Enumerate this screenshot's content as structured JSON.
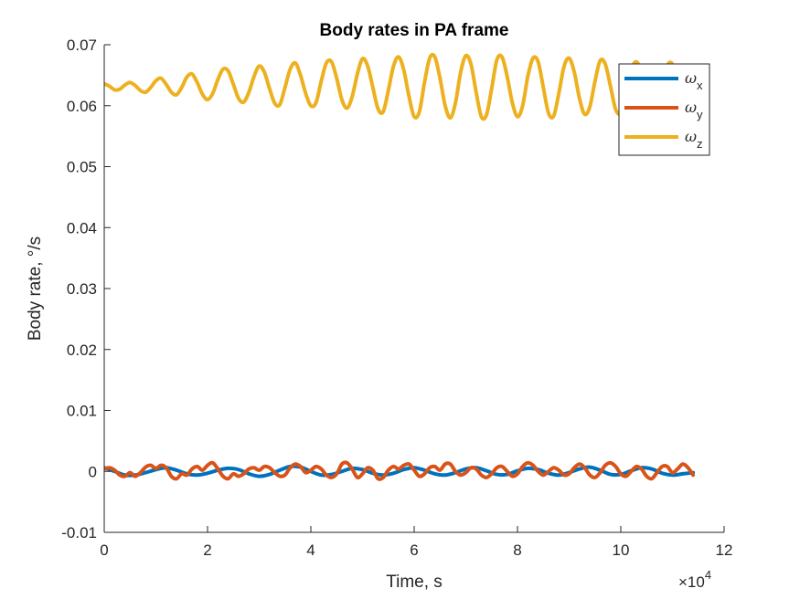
{
  "chart_data": {
    "type": "line",
    "title": "Body rates in PA frame",
    "xlabel": "Time, s",
    "ylabel": "Body rate, °/s",
    "xlim": [
      0,
      120000
    ],
    "ylim": [
      -0.01,
      0.07
    ],
    "x_ticks": [
      0,
      20000,
      40000,
      60000,
      80000,
      100000,
      120000
    ],
    "x_tick_labels": [
      "0",
      "2",
      "4",
      "6",
      "8",
      "10",
      "12"
    ],
    "x_exponent_label": "×10",
    "x_exponent_power": "4",
    "y_ticks": [
      -0.01,
      0,
      0.01,
      0.02,
      0.03,
      0.04,
      0.05,
      0.06,
      0.07
    ],
    "y_tick_labels": [
      "-0.01",
      "0",
      "0.01",
      "0.02",
      "0.03",
      "0.04",
      "0.05",
      "0.06",
      "0.07"
    ],
    "grid": false,
    "legend_position": "top-right",
    "series": [
      {
        "name": "ωx",
        "symbol": "ω",
        "subscript": "x",
        "color": "#0072BD",
        "x": [
          0,
          2000,
          4000,
          6000,
          8000,
          10000,
          12000,
          14000,
          16000,
          18000,
          20000,
          22000,
          24000,
          26000,
          28000,
          30000,
          32000,
          34000,
          36000,
          38000,
          40000,
          42000,
          44000,
          46000,
          48000,
          50000,
          52000,
          54000,
          56000,
          58000,
          60000,
          62000,
          64000,
          66000,
          68000,
          70000,
          72000,
          74000,
          76000,
          78000,
          80000,
          82000,
          84000,
          86000,
          88000,
          90000,
          92000,
          94000,
          96000,
          98000,
          100000,
          102000,
          104000,
          106000,
          108000,
          110000,
          112000,
          114000
        ],
        "y": [
          0.0006,
          0.0,
          -0.0006,
          -0.0006,
          -0.0002,
          0.0003,
          0.0006,
          0.0002,
          -0.0004,
          -0.0006,
          -0.0003,
          0.0002,
          0.0005,
          0.0003,
          -0.0004,
          -0.0008,
          -0.0005,
          0.0002,
          0.0008,
          0.0007,
          0.0,
          -0.0006,
          -0.0005,
          0.0,
          0.0005,
          0.0003,
          -0.0003,
          -0.0006,
          -0.0003,
          0.0003,
          0.0006,
          0.0002,
          -0.0004,
          -0.0006,
          -0.0002,
          0.0004,
          0.0006,
          0.0001,
          -0.0005,
          -0.0005,
          0.0001,
          0.0005,
          0.0003,
          -0.0003,
          -0.0006,
          -0.0002,
          0.0004,
          0.0007,
          0.0002,
          -0.0005,
          -0.0005,
          0.0001,
          0.0006,
          0.0004,
          -0.0003,
          -0.0006,
          -0.0004,
          -0.0002
        ]
      },
      {
        "name": "ωy",
        "symbol": "ω",
        "subscript": "y",
        "color": "#D95319",
        "x": [
          0,
          1000,
          2000,
          3000,
          4000,
          5000,
          6000,
          7000,
          8000,
          9000,
          10000,
          11000,
          12000,
          13000,
          14000,
          15000,
          16000,
          17000,
          18000,
          19000,
          20000,
          21000,
          22000,
          23000,
          24000,
          25000,
          26000,
          27000,
          28000,
          29000,
          30000,
          31000,
          32000,
          33000,
          34000,
          35000,
          36000,
          37000,
          38000,
          39000,
          40000,
          41000,
          42000,
          43000,
          44000,
          45000,
          46000,
          47000,
          48000,
          49000,
          50000,
          51000,
          52000,
          53000,
          54000,
          55000,
          56000,
          57000,
          58000,
          59000,
          60000,
          61000,
          62000,
          63000,
          64000,
          65000,
          66000,
          67000,
          68000,
          69000,
          70000,
          71000,
          72000,
          73000,
          74000,
          75000,
          76000,
          77000,
          78000,
          79000,
          80000,
          81000,
          82000,
          83000,
          84000,
          85000,
          86000,
          87000,
          88000,
          89000,
          90000,
          91000,
          92000,
          93000,
          94000,
          95000,
          96000,
          97000,
          98000,
          99000,
          100000,
          101000,
          102000,
          103000,
          104000,
          105000,
          106000,
          107000,
          108000,
          109000,
          110000,
          111000,
          112000,
          113000,
          114000
        ],
        "y": [
          0.0004,
          0.0006,
          0.0002,
          -0.0006,
          -0.0008,
          -0.0002,
          -0.0008,
          -0.0002,
          0.0007,
          0.001,
          0.0005,
          0.001,
          0.0006,
          -0.0008,
          -0.0012,
          -0.0004,
          -0.0006,
          0.0004,
          0.0008,
          0.0002,
          0.001,
          0.0014,
          0.0004,
          -0.0008,
          -0.0012,
          -0.0004,
          -0.0008,
          -0.0004,
          0.0004,
          0.0006,
          0.0002,
          0.0008,
          0.0006,
          -0.0002,
          -0.0008,
          -0.0006,
          0.0006,
          0.0012,
          0.0008,
          -0.0002,
          0.0002,
          0.0008,
          0.0004,
          -0.0006,
          -0.001,
          -0.0004,
          0.0012,
          0.0014,
          0.0004,
          -0.001,
          -0.0004,
          0.0006,
          0.0002,
          -0.0012,
          -0.001,
          0.0002,
          0.0008,
          0.0004,
          0.001,
          0.0012,
          0.0002,
          -0.0008,
          -0.0004,
          0.0006,
          0.0008,
          0.0002,
          0.0012,
          0.0012,
          0.0,
          -0.0006,
          -0.0002,
          0.0006,
          0.0004,
          -0.0006,
          -0.001,
          -0.0004,
          0.0006,
          0.0008,
          0.0,
          -0.0008,
          -0.0004,
          0.0008,
          0.0014,
          0.001,
          0.0,
          -0.0006,
          0.0,
          0.0006,
          0.0002,
          -0.0006,
          -0.0004,
          0.0006,
          0.0012,
          0.0006,
          -0.0006,
          -0.001,
          -0.0002,
          0.001,
          0.0014,
          0.0008,
          -0.0004,
          -0.0008,
          0.0,
          0.0008,
          0.0004,
          -0.0008,
          -0.0012,
          -0.0002,
          0.0008,
          0.0008,
          -0.0002,
          0.0004,
          0.0012,
          0.0006,
          -0.0006
        ]
      },
      {
        "name": "ωz",
        "symbol": "ω",
        "subscript": "z",
        "color": "#EDB120",
        "x": [
          0,
          1000,
          2000,
          3000,
          4000,
          5000,
          6000,
          7000,
          8000,
          9000,
          10000,
          11000,
          12000,
          13000,
          14000,
          15000,
          16000,
          17000,
          18000,
          19000,
          20000,
          21000,
          22000,
          23000,
          24000,
          25000,
          26000,
          27000,
          28000,
          29000,
          30000,
          31000,
          32000,
          33000,
          34000,
          35000,
          36000,
          37000,
          38000,
          39000,
          40000,
          41000,
          42000,
          43000,
          44000,
          45000,
          46000,
          47000,
          48000,
          49000,
          50000,
          51000,
          52000,
          53000,
          54000,
          55000,
          56000,
          57000,
          58000,
          59000,
          60000,
          61000,
          62000,
          63000,
          64000,
          65000,
          66000,
          67000,
          68000,
          69000,
          70000,
          71000,
          72000,
          73000,
          74000,
          75000,
          76000,
          77000,
          78000,
          79000,
          80000,
          81000,
          82000,
          83000,
          84000,
          85000,
          86000,
          87000,
          88000,
          89000,
          90000,
          91000,
          92000,
          93000,
          94000,
          95000,
          96000,
          97000,
          98000,
          99000,
          100000,
          101000,
          102000,
          103000,
          104000,
          105000,
          106000,
          107000,
          108000,
          109000,
          110000,
          111000,
          112000,
          113000,
          114000
        ],
        "y": [
          0.0636,
          0.0632,
          0.0626,
          0.0627,
          0.0634,
          0.0638,
          0.0633,
          0.0625,
          0.0622,
          0.063,
          0.0641,
          0.0645,
          0.0635,
          0.0622,
          0.0618,
          0.063,
          0.0647,
          0.0652,
          0.0638,
          0.0619,
          0.061,
          0.062,
          0.0643,
          0.066,
          0.0657,
          0.0635,
          0.0612,
          0.0606,
          0.0622,
          0.0648,
          0.0665,
          0.0655,
          0.0628,
          0.0604,
          0.0602,
          0.063,
          0.066,
          0.067,
          0.065,
          0.062,
          0.06,
          0.0605,
          0.064,
          0.067,
          0.0672,
          0.0645,
          0.061,
          0.0596,
          0.0615,
          0.0652,
          0.0677,
          0.0665,
          0.063,
          0.0595,
          0.059,
          0.0625,
          0.0665,
          0.068,
          0.0658,
          0.0615,
          0.0582,
          0.059,
          0.0638,
          0.0678,
          0.068,
          0.0645,
          0.06,
          0.058,
          0.0605,
          0.0655,
          0.0682,
          0.0668,
          0.0622,
          0.0582,
          0.0585,
          0.0628,
          0.0675,
          0.068,
          0.0648,
          0.0605,
          0.0582,
          0.06,
          0.0648,
          0.0678,
          0.0672,
          0.063,
          0.0588,
          0.0583,
          0.062,
          0.0664,
          0.0678,
          0.0655,
          0.0612,
          0.0586,
          0.0598,
          0.064,
          0.0674,
          0.0668,
          0.0632,
          0.0594,
          0.0588,
          0.0618,
          0.0658,
          0.0672,
          0.0655,
          0.0618,
          0.059,
          0.0598,
          0.0632,
          0.0666,
          0.0668,
          0.0638,
          0.0602,
          0.0592,
          0.0612
        ]
      }
    ]
  }
}
